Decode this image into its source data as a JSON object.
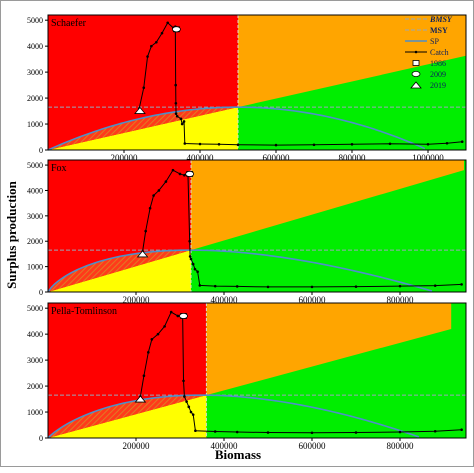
{
  "figure": {
    "ylabel": "Surplus production",
    "xlabel": "Biomass"
  },
  "legend": {
    "items": [
      {
        "label": "BMSY",
        "style": "dash",
        "color": "#9aa7b8"
      },
      {
        "label": "MSY",
        "style": "dash",
        "color": "#9aa7b8"
      },
      {
        "label": "SP",
        "style": "line",
        "color": "#4f8fc9"
      },
      {
        "label": "Catch",
        "style": "line-dot",
        "color": "#000000"
      },
      {
        "label": "1986",
        "style": "square",
        "color": "#000000"
      },
      {
        "label": "2009",
        "style": "circle",
        "color": "#000000"
      },
      {
        "label": "2019",
        "style": "triangle",
        "color": "#000000"
      }
    ]
  },
  "chart_data": [
    {
      "type": "line",
      "title": "Schaefer",
      "xlim": [
        0,
        1100000
      ],
      "ylim": [
        0,
        5200
      ],
      "xticks": [
        200000,
        400000,
        600000,
        800000,
        1000000
      ],
      "xtick_labels": [
        "200000",
        "400000",
        "600000",
        "800000",
        "1000000"
      ],
      "yticks": [
        0,
        1000,
        2000,
        3000,
        4000,
        5000
      ],
      "ytick_labels": [
        "0",
        "1000",
        "2000",
        "3000",
        "4000",
        "5000"
      ],
      "bmsy": 500000,
      "msy": 1650,
      "sp_model": "schaefer",
      "sp_k": 1000000,
      "green_top": 5200,
      "trajectory": {
        "biomass": [
          240000,
          252000,
          262000,
          272000,
          285000,
          300000,
          315000,
          330000,
          335000,
          336000,
          336500,
          337000,
          340000,
          350000,
          353000,
          358000
        ],
        "catch": [
          1600,
          2400,
          3600,
          4000,
          4150,
          4500,
          4900,
          4700,
          4750,
          2500,
          1800,
          1400,
          1300,
          1200,
          1000,
          1100
        ]
      },
      "catch_series": {
        "biomass": [
          360000,
          400000,
          450000,
          500000,
          600000,
          700000,
          800000,
          900000,
          1000000,
          1050000,
          1090000
        ],
        "catch": [
          250,
          230,
          220,
          200,
          190,
          200,
          220,
          240,
          220,
          260,
          320
        ]
      },
      "markers": [
        {
          "label": "1986",
          "shape": "square",
          "biomass": 338000,
          "catch": 4650
        },
        {
          "label": "2009",
          "shape": "circle",
          "biomass": 338000,
          "catch": 4650
        },
        {
          "label": "2019",
          "shape": "triangle",
          "biomass": 242000,
          "catch": 1520
        }
      ]
    },
    {
      "type": "line",
      "title": "Fox",
      "xlim": [
        0,
        950000
      ],
      "ylim": [
        0,
        5200
      ],
      "xticks": [
        200000,
        400000,
        600000,
        800000
      ],
      "xtick_labels": [
        "200000",
        "400000",
        "600000",
        "800000"
      ],
      "yticks": [
        0,
        1000,
        2000,
        3000,
        4000,
        5000
      ],
      "ytick_labels": [
        "0",
        "1000",
        "2000",
        "3000",
        "4000",
        "5000"
      ],
      "bmsy": 325000,
      "msy": 1650,
      "sp_model": "fox",
      "sp_k": 880000,
      "green_top": 4800,
      "trajectory": {
        "biomass": [
          215000,
          222000,
          232000,
          240000,
          252000,
          268000,
          284000,
          300000,
          310000,
          318000,
          322000,
          323000,
          325000,
          330000,
          334000,
          340000
        ],
        "catch": [
          1600,
          2400,
          3300,
          3800,
          4000,
          4350,
          4800,
          4650,
          4600,
          4700,
          2000,
          1400,
          1300,
          1100,
          900,
          800
        ]
      },
      "catch_series": {
        "biomass": [
          345000,
          380000,
          430000,
          500000,
          600000,
          700000,
          800000,
          880000,
          940000
        ],
        "catch": [
          260,
          230,
          220,
          200,
          200,
          210,
          230,
          250,
          300
        ]
      },
      "markers": [
        {
          "label": "1986",
          "shape": "square",
          "biomass": 322000,
          "catch": 4650
        },
        {
          "label": "2009",
          "shape": "circle",
          "biomass": 322000,
          "catch": 4650
        },
        {
          "label": "2019",
          "shape": "triangle",
          "biomass": 215000,
          "catch": 1500
        }
      ]
    },
    {
      "type": "line",
      "title": "Pella-Tomlinson",
      "xlim": [
        0,
        950000
      ],
      "ylim": [
        0,
        5200
      ],
      "xticks": [
        200000,
        400000,
        600000,
        800000
      ],
      "xtick_labels": [
        "200000",
        "400000",
        "600000",
        "800000"
      ],
      "yticks": [
        0,
        1000,
        2000,
        3000,
        4000,
        5000
      ],
      "ytick_labels": [
        "0",
        "1000",
        "2000",
        "3000",
        "4000",
        "5000"
      ],
      "bmsy": 360000,
      "msy": 1650,
      "sp_model": "pella",
      "sp_k": 850000,
      "green_top": 4200,
      "trajectory": {
        "biomass": [
          210000,
          218000,
          228000,
          236000,
          250000,
          265000,
          280000,
          295000,
          302000,
          306000,
          308000,
          310000,
          315000,
          320000,
          325000,
          330000
        ],
        "catch": [
          1600,
          2400,
          3300,
          3800,
          4000,
          4300,
          4850,
          4700,
          4700,
          4750,
          2200,
          1600,
          1400,
          1200,
          1000,
          900
        ]
      },
      "catch_series": {
        "biomass": [
          335000,
          380000,
          430000,
          500000,
          600000,
          700000,
          800000,
          880000,
          940000
        ],
        "catch": [
          280,
          250,
          230,
          210,
          200,
          210,
          230,
          260,
          320
        ]
      },
      "markers": [
        {
          "label": "1986",
          "shape": "square",
          "biomass": 308000,
          "catch": 4700
        },
        {
          "label": "2009",
          "shape": "circle",
          "biomass": 308000,
          "catch": 4700
        },
        {
          "label": "2019",
          "shape": "triangle",
          "biomass": 210000,
          "catch": 1500
        }
      ]
    }
  ]
}
